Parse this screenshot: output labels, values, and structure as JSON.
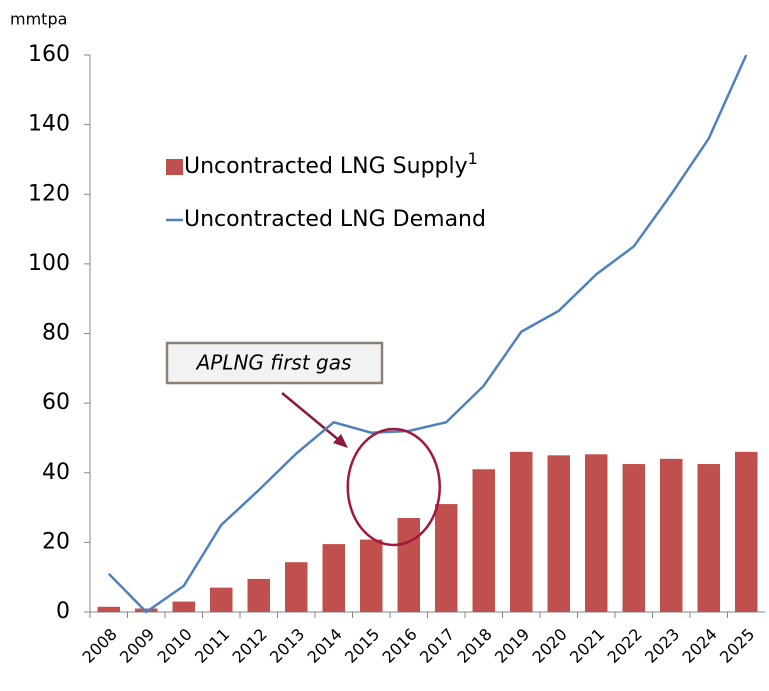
{
  "chart_data": {
    "type": "bar",
    "y_axis_label": "mmtpa",
    "categories": [
      "2008",
      "2009",
      "2010",
      "2011",
      "2012",
      "2013",
      "2014",
      "2015",
      "2016",
      "2017",
      "2018",
      "2019",
      "2020",
      "2021",
      "2022",
      "2023",
      "2024",
      "2025"
    ],
    "series": [
      {
        "name": "Uncontracted LNG Supply",
        "name_superscript": "1",
        "type": "bar",
        "color": "#c0504d",
        "values": [
          1.5,
          1,
          3,
          7,
          9.5,
          14.3,
          19.5,
          20.8,
          27,
          31,
          41,
          46,
          45,
          45.3,
          42.5,
          44,
          42.5,
          46
        ]
      },
      {
        "name": "Uncontracted LNG Demand",
        "type": "line",
        "color": "#4f81bd",
        "values": [
          11,
          0,
          7.5,
          25,
          35,
          45.5,
          54.5,
          51.5,
          52,
          54.5,
          65,
          80.5,
          86.5,
          97,
          105,
          120,
          136,
          160
        ]
      }
    ],
    "annotation": {
      "text": "APLNG first gas",
      "category": "2016"
    },
    "ylim": [
      0,
      160
    ],
    "yticks": [
      0,
      20,
      40,
      60,
      80,
      100,
      120,
      140,
      160
    ],
    "grid": false
  }
}
